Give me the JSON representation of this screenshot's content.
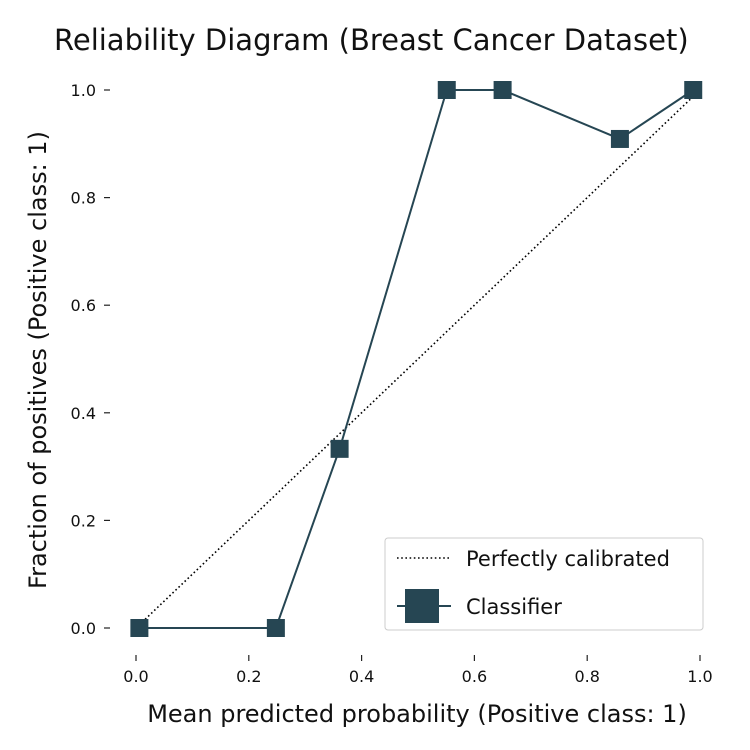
{
  "chart_data": {
    "type": "line",
    "title": "Reliability Diagram (Breast Cancer Dataset)",
    "xlabel": "Mean predicted probability (Positive class: 1)",
    "ylabel": "Fraction of positives (Positive class: 1)",
    "xlim": [
      -0.05,
      1.05
    ],
    "ylim": [
      -0.05,
      1.05
    ],
    "xticks": [
      "0.0",
      "0.2",
      "0.4",
      "0.6",
      "0.8",
      "1.0"
    ],
    "yticks": [
      "0.0",
      "0.2",
      "0.4",
      "0.6",
      "0.8",
      "1.0"
    ],
    "grid": false,
    "legend_position": "bottom-right",
    "series": [
      {
        "name": "Perfectly calibrated",
        "style": "dotted",
        "color": "#000000",
        "x": [
          0,
          1
        ],
        "y": [
          0,
          1
        ]
      },
      {
        "name": "Classifier",
        "style": "solid-square-markers",
        "color": "#264653",
        "x": [
          0.006,
          0.248,
          0.361,
          0.551,
          0.65,
          0.858,
          0.988
        ],
        "y": [
          0.0,
          0.0,
          0.333,
          1.0,
          1.0,
          0.909,
          1.0
        ]
      }
    ]
  }
}
